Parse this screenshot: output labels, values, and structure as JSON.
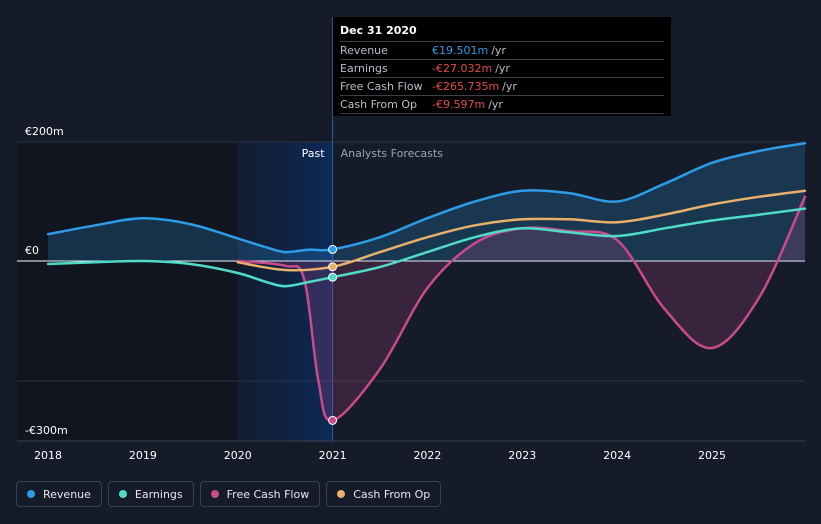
{
  "chart_data": {
    "type": "line",
    "title": "",
    "xlabel": "",
    "ylabel": "",
    "x_ticks": [
      "2018",
      "2019",
      "2020",
      "2021",
      "2022",
      "2023",
      "2024",
      "2025"
    ],
    "x_range": [
      2018.0,
      2025.98
    ],
    "y_ticks": [
      {
        "value": 200,
        "label": "€200m"
      },
      {
        "value": 0,
        "label": "€0"
      },
      {
        "value": -300,
        "label": "-€300m"
      }
    ],
    "ylim": [
      -300,
      200
    ],
    "divider_x": 2021.0,
    "past_region_start": 2020.0,
    "past_label": "Past",
    "forecast_label": "Analysts Forecasts",
    "series": [
      {
        "name": "Revenue",
        "color": "#2e9be6",
        "fill": true,
        "points": [
          [
            2018.0,
            45
          ],
          [
            2018.5,
            60
          ],
          [
            2019.0,
            72
          ],
          [
            2019.5,
            62
          ],
          [
            2020.0,
            38
          ],
          [
            2020.3,
            23
          ],
          [
            2020.5,
            15
          ],
          [
            2020.75,
            19
          ],
          [
            2021.0,
            19.5
          ],
          [
            2021.5,
            40
          ],
          [
            2022.0,
            72
          ],
          [
            2022.5,
            100
          ],
          [
            2023.0,
            118
          ],
          [
            2023.5,
            114
          ],
          [
            2024.0,
            100
          ],
          [
            2024.5,
            130
          ],
          [
            2025.0,
            165
          ],
          [
            2025.5,
            185
          ],
          [
            2025.98,
            198
          ]
        ]
      },
      {
        "name": "Earnings",
        "color": "#4fdbc8",
        "fill": false,
        "points": [
          [
            2018.0,
            -5
          ],
          [
            2018.5,
            -2
          ],
          [
            2019.0,
            0
          ],
          [
            2019.5,
            -5
          ],
          [
            2020.0,
            -20
          ],
          [
            2020.3,
            -35
          ],
          [
            2020.5,
            -42
          ],
          [
            2020.75,
            -35
          ],
          [
            2021.0,
            -27
          ],
          [
            2021.5,
            -10
          ],
          [
            2022.0,
            15
          ],
          [
            2022.5,
            40
          ],
          [
            2023.0,
            55
          ],
          [
            2023.5,
            48
          ],
          [
            2024.0,
            42
          ],
          [
            2024.5,
            55
          ],
          [
            2025.0,
            68
          ],
          [
            2025.5,
            78
          ],
          [
            2025.98,
            88
          ]
        ]
      },
      {
        "name": "Free Cash Flow",
        "color": "#c94b8b",
        "fill": true,
        "points": [
          [
            2020.0,
            0
          ],
          [
            2020.5,
            -8
          ],
          [
            2020.7,
            -30
          ],
          [
            2020.85,
            -200
          ],
          [
            2021.0,
            -265.7
          ],
          [
            2021.5,
            -180
          ],
          [
            2022.0,
            -45
          ],
          [
            2022.5,
            30
          ],
          [
            2023.0,
            55
          ],
          [
            2023.5,
            50
          ],
          [
            2024.0,
            35
          ],
          [
            2024.5,
            -80
          ],
          [
            2025.0,
            -145
          ],
          [
            2025.5,
            -60
          ],
          [
            2025.98,
            108
          ]
        ]
      },
      {
        "name": "Cash From Op",
        "color": "#e8b06a",
        "fill": false,
        "points": [
          [
            2020.0,
            -2
          ],
          [
            2020.5,
            -15
          ],
          [
            2021.0,
            -9.6
          ],
          [
            2021.5,
            15
          ],
          [
            2022.0,
            40
          ],
          [
            2022.5,
            60
          ],
          [
            2023.0,
            70
          ],
          [
            2023.5,
            70
          ],
          [
            2024.0,
            65
          ],
          [
            2024.5,
            78
          ],
          [
            2025.0,
            95
          ],
          [
            2025.5,
            108
          ],
          [
            2025.98,
            118
          ]
        ]
      }
    ],
    "highlight": {
      "x": 2021.0,
      "values": [
        {
          "series": "Revenue",
          "y": 19.5
        },
        {
          "series": "Cash From Op",
          "y": -9.6
        },
        {
          "series": "Earnings",
          "y": -27.0
        },
        {
          "series": "Free Cash Flow",
          "y": -265.7
        }
      ]
    }
  },
  "tooltip": {
    "date": "Dec 31 2020",
    "unit": "/yr",
    "rows": [
      {
        "label": "Revenue",
        "value": "€19.501m",
        "color": "#2e9be6"
      },
      {
        "label": "Earnings",
        "value": "-€27.032m",
        "color": "#e64a4a"
      },
      {
        "label": "Free Cash Flow",
        "value": "-€265.735m",
        "color": "#e64a4a"
      },
      {
        "label": "Cash From Op",
        "value": "-€9.597m",
        "color": "#e64a4a"
      }
    ]
  },
  "legend": [
    {
      "label": "Revenue",
      "color": "#2e9be6"
    },
    {
      "label": "Earnings",
      "color": "#4fdbc8"
    },
    {
      "label": "Free Cash Flow",
      "color": "#c94b8b"
    },
    {
      "label": "Cash From Op",
      "color": "#e8b06a"
    }
  ]
}
